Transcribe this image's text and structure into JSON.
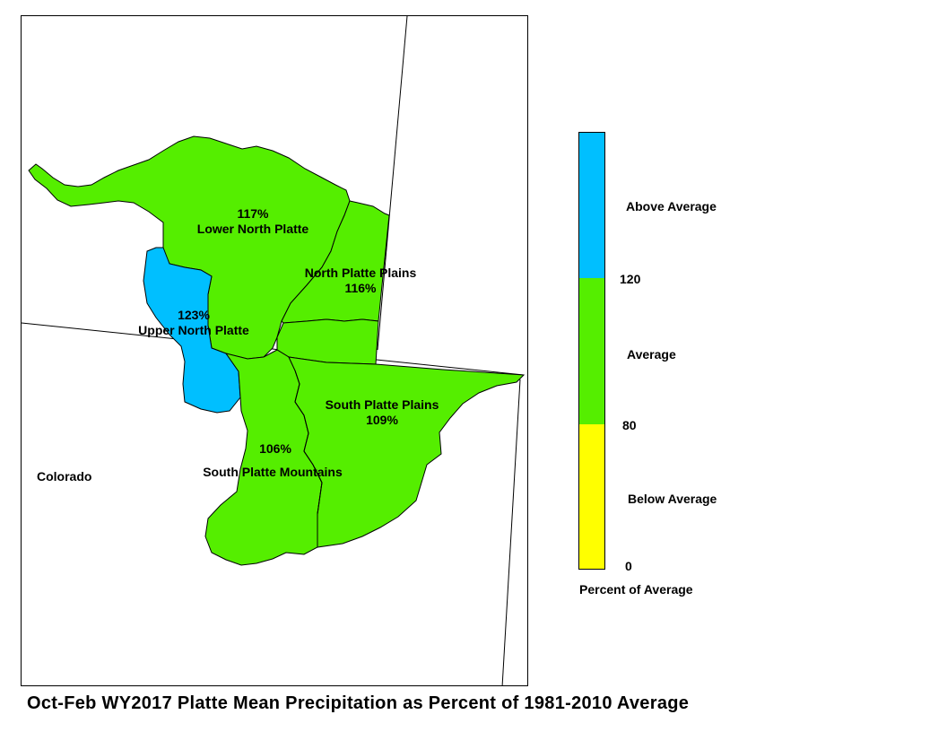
{
  "map": {
    "regions": [
      {
        "name": "Lower North Platte",
        "percent": "117%",
        "category": "average"
      },
      {
        "name": "North Platte Plains",
        "percent": "116%",
        "category": "average"
      },
      {
        "name": "Upper North Platte",
        "percent": "123%",
        "category": "above"
      },
      {
        "name": "South Platte Plains",
        "percent": "109%",
        "category": "average"
      },
      {
        "name": "South Platte Mountains",
        "percent": "106%",
        "category": "average"
      }
    ],
    "state_label": "Colorado"
  },
  "legend": {
    "segments": [
      {
        "label": "Above Average",
        "color": "#00bfff",
        "from": 120,
        "to": null
      },
      {
        "label": "Average",
        "color": "#55ee00",
        "from": 80,
        "to": 120
      },
      {
        "label": "Below Average",
        "color": "#ffff00",
        "from": 0,
        "to": 80
      }
    ],
    "ticks": [
      "120",
      "80",
      "0"
    ],
    "caption": "Percent of Average"
  },
  "title": "Oct-Feb WY2017 Platte Mean Precipitation as Percent of 1981-2010 Average"
}
